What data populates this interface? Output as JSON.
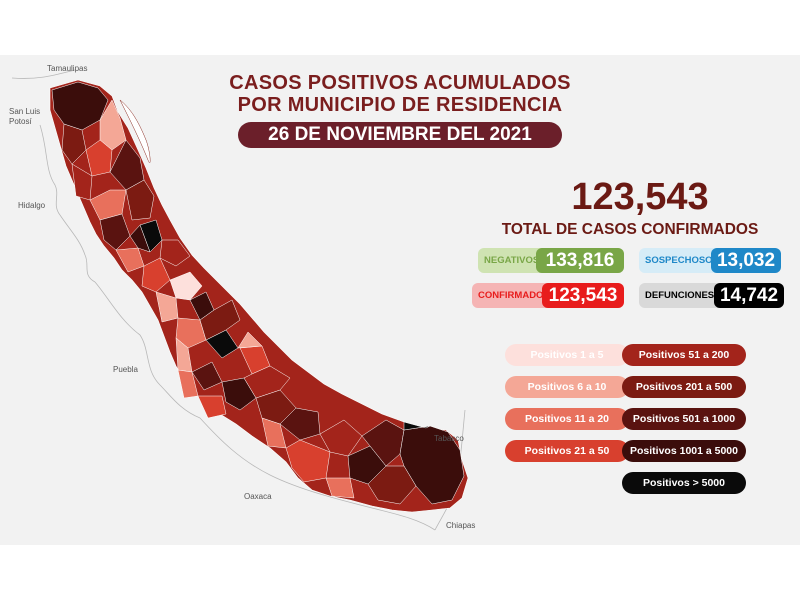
{
  "title_lines": [
    "CASOS POSITIVOS ACUMULADOS",
    "POR MUNICIPIO DE RESIDENCIA"
  ],
  "date": "26 DE NOVIEMBRE DEL 2021",
  "total_number": "123,543",
  "total_label": "TOTAL DE CASOS CONFIRMADOS",
  "stats": {
    "negativos": {
      "label": "NEGATIVOS",
      "value": "133,816",
      "bg": "#cfe3b2",
      "color": "#79a647"
    },
    "sospechosos": {
      "label": "SOSPECHOSOS",
      "value": "13,032",
      "bg": "#d6ecf7",
      "color": "#1f88c8"
    },
    "confirmados": {
      "label": "CONFIRMADOS",
      "value": "123,543",
      "bg": "#f5b4b4",
      "color": "#e81c1c"
    },
    "defunciones": {
      "label": "DEFUNCIONES",
      "value": "14,742",
      "bg": "#d9d9d9",
      "color": "#000000"
    }
  },
  "legend": [
    {
      "label": "Positivos 1 a 5",
      "color": "#fde0dc",
      "text_color": "#ffffff"
    },
    {
      "label": "Positivos 6 a 10",
      "color": "#f4a796",
      "text_color": "#ffffff"
    },
    {
      "label": "Positivos 11 a 20",
      "color": "#e8705c",
      "text_color": "#ffffff"
    },
    {
      "label": "Positivos 21 a 50",
      "color": "#d8402e",
      "text_color": "#ffffff"
    },
    {
      "label": "Positivos 51 a 200",
      "color": "#a3241b",
      "text_color": "#ffffff"
    },
    {
      "label": "Positivos 201 a 500",
      "color": "#7c1b12",
      "text_color": "#ffffff"
    },
    {
      "label": "Positivos 501 a 1000",
      "color": "#5a1310",
      "text_color": "#ffffff"
    },
    {
      "label": "Positivos 1001 a 5000",
      "color": "#3b0d0b",
      "text_color": "#ffffff"
    },
    {
      "label": "Positivos > 5000",
      "color": "#0a0a0a",
      "text_color": "#ffffff"
    }
  ],
  "neighbor_states": [
    "Tamaulipas",
    "San Luis Potosí",
    "Hidalgo",
    "Puebla",
    "Oaxaca",
    "Tabasco",
    "Chiapas"
  ]
}
